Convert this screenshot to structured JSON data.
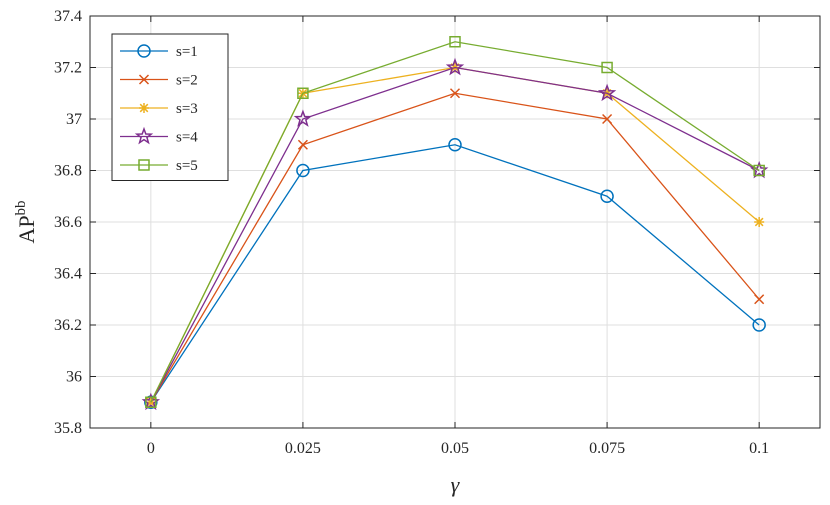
{
  "chart_data": {
    "type": "line",
    "title": "",
    "xlabel": "γ",
    "ylabel": "AP",
    "ylabel_superscript": "bb",
    "x": [
      0,
      0.025,
      0.05,
      0.075,
      0.1
    ],
    "x_tick_labels": [
      "0",
      "0.025",
      "0.05",
      "0.075",
      "0.1"
    ],
    "y_tick_labels": [
      "35.8",
      "36",
      "36.2",
      "36.4",
      "36.6",
      "36.8",
      "37",
      "37.2",
      "37.4"
    ],
    "xlim": [
      -0.01,
      0.11
    ],
    "ylim": [
      35.8,
      37.4
    ],
    "grid": true,
    "legend_position": "top-left",
    "series": [
      {
        "name": "s=1",
        "color": "#0072BD",
        "marker": "circle",
        "values": [
          35.9,
          36.8,
          36.9,
          36.7,
          36.2
        ]
      },
      {
        "name": "s=2",
        "color": "#D95319",
        "marker": "x",
        "values": [
          35.9,
          36.9,
          37.1,
          37.0,
          36.3
        ]
      },
      {
        "name": "s=3",
        "color": "#EDB120",
        "marker": "asterisk",
        "values": [
          35.9,
          37.1,
          37.2,
          37.1,
          36.6
        ]
      },
      {
        "name": "s=4",
        "color": "#7E2F8E",
        "marker": "star",
        "values": [
          35.9,
          37.0,
          37.2,
          37.1,
          36.8
        ]
      },
      {
        "name": "s=5",
        "color": "#77AC30",
        "marker": "square",
        "values": [
          35.9,
          37.1,
          37.3,
          37.2,
          36.8
        ]
      }
    ]
  }
}
